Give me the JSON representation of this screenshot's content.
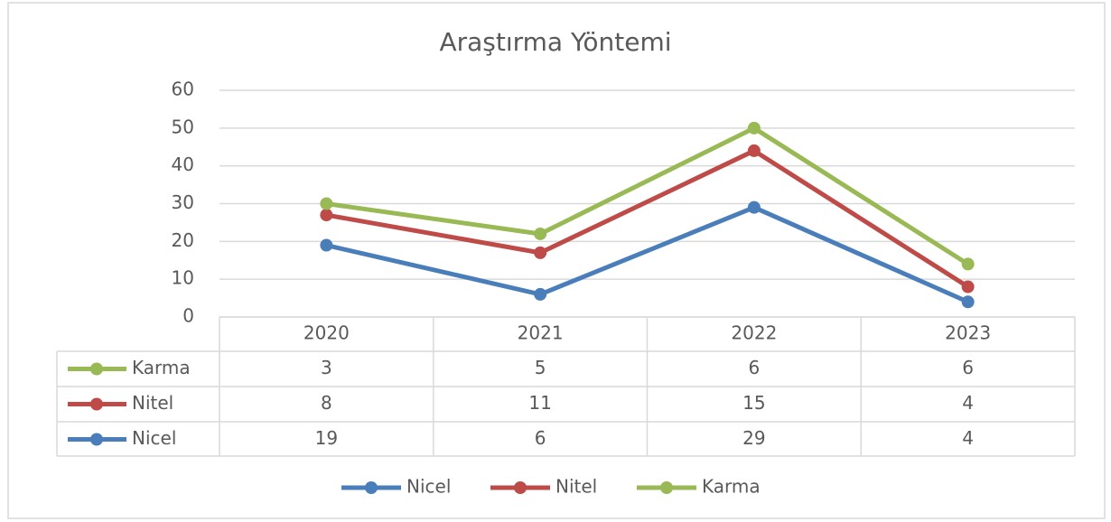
{
  "chart_data": {
    "type": "line",
    "stacked": true,
    "title": "Araştırma Yöntemi",
    "categories": [
      "2020",
      "2021",
      "2022",
      "2023"
    ],
    "series": [
      {
        "name": "Nicel",
        "color": "#4a7ebb",
        "values": [
          19,
          6,
          29,
          4
        ]
      },
      {
        "name": "Nitel",
        "color": "#be4b48",
        "values": [
          8,
          11,
          15,
          4
        ]
      },
      {
        "name": "Karma",
        "color": "#98b954",
        "values": [
          3,
          5,
          6,
          6
        ]
      }
    ],
    "ylim": [
      0,
      60
    ],
    "yticks": [
      0,
      10,
      20,
      30,
      40,
      50,
      60
    ],
    "grid": true,
    "legend": "bottom",
    "data_table": true
  }
}
